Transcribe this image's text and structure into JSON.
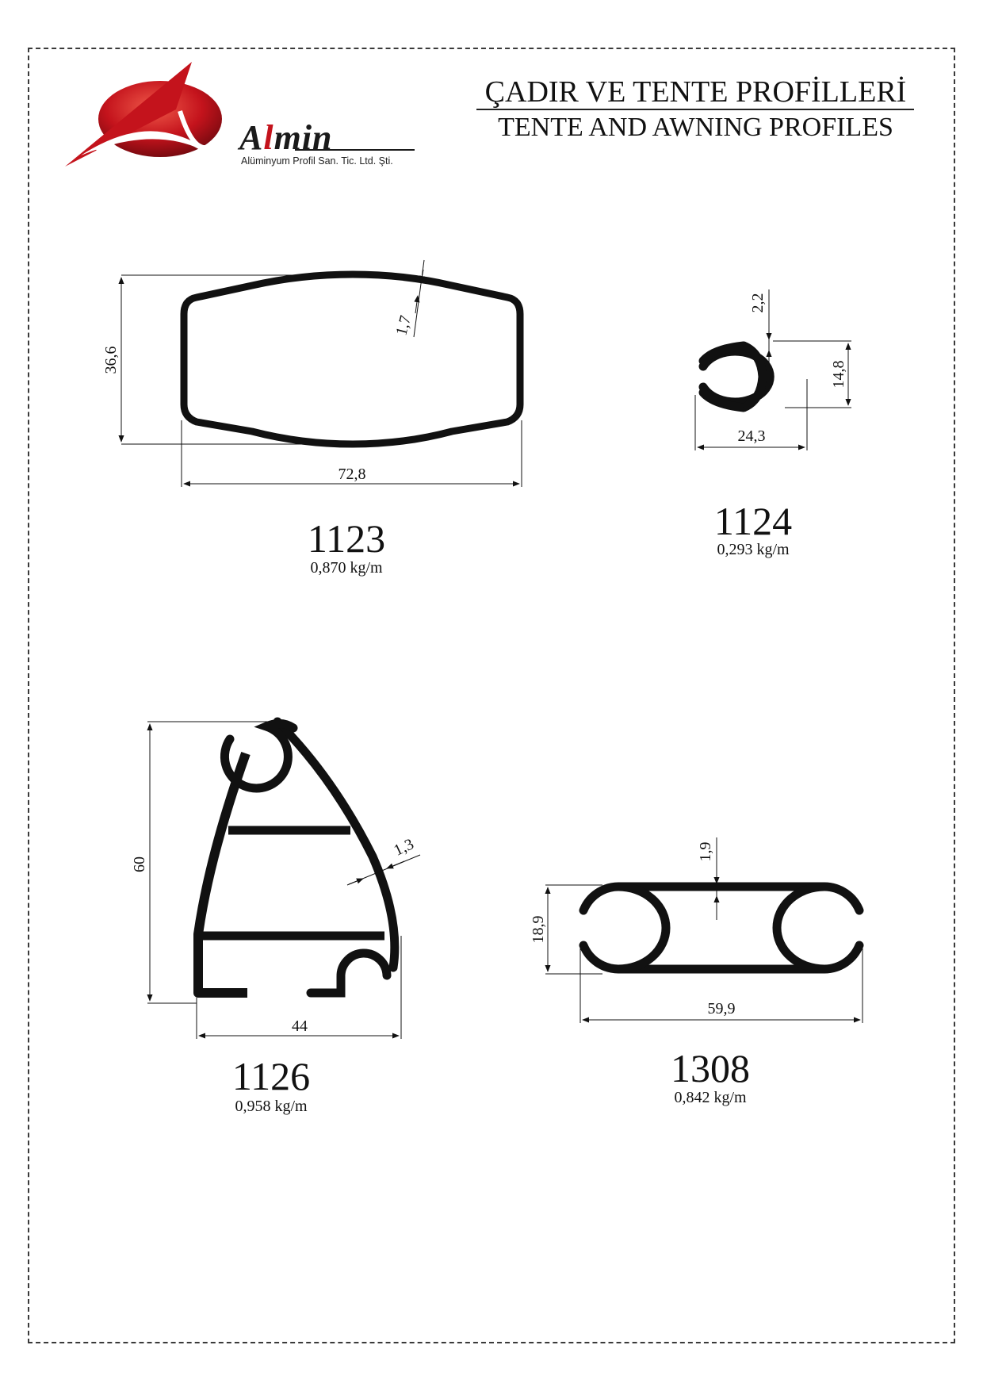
{
  "header": {
    "title_tr": "ÇADIR VE TENTE PROFİLLERİ",
    "title_en": "TENTE AND AWNING PROFILES"
  },
  "logo": {
    "brand": "Almin",
    "subtitle": "Alüminyum Profil San. Tic. Ltd. Şti.",
    "colors": {
      "red": "#c4131c",
      "black": "#1a1a1a"
    }
  },
  "profiles": [
    {
      "code": "1123",
      "weight": "0,870 kg/m",
      "dims": {
        "width": "72,8",
        "height": "36,6",
        "wall": "1,7"
      }
    },
    {
      "code": "1124",
      "weight": "0,293 kg/m",
      "dims": {
        "width": "24,3",
        "height": "14,8",
        "wall": "2,2"
      }
    },
    {
      "code": "1126",
      "weight": "0,958 kg/m",
      "dims": {
        "width": "44",
        "height": "60",
        "wall": "1,3"
      }
    },
    {
      "code": "1308",
      "weight": "0,842 kg/m",
      "dims": {
        "width": "59,9",
        "height": "18,9",
        "wall": "1,9"
      }
    }
  ]
}
